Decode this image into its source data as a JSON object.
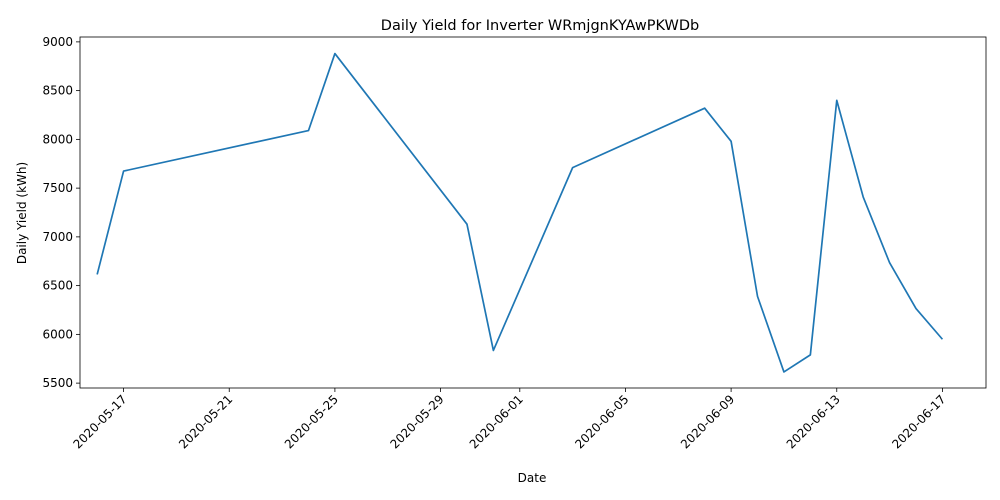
{
  "chart_data": {
    "type": "line",
    "title": "Daily Yield for Inverter WRmjgnKYAwPKWDb",
    "xlabel": "Date",
    "ylabel": "Daily Yield (kWh)",
    "x_tick_labels": [
      "2020-05-17",
      "2020-05-21",
      "2020-05-25",
      "2020-05-29",
      "2020-06-01",
      "2020-06-05",
      "2020-06-09",
      "2020-06-13",
      "2020-06-17"
    ],
    "y_ticks": [
      5500,
      6000,
      6500,
      7000,
      7500,
      8000,
      8500,
      9000
    ],
    "xlim": [
      "2020-05-15",
      "2020-06-17"
    ],
    "ylim": [
      5450,
      9050
    ],
    "grid": false,
    "legend": "none",
    "series": [
      {
        "color": "#1f77b4",
        "points": [
          {
            "x": "2020-05-16",
            "y": 6615
          },
          {
            "x": "2020-05-17",
            "y": 7675
          },
          {
            "x": "2020-05-24",
            "y": 8090
          },
          {
            "x": "2020-05-25",
            "y": 8880
          },
          {
            "x": "2020-05-30",
            "y": 7130
          },
          {
            "x": "2020-05-31",
            "y": 5835
          },
          {
            "x": "2020-06-03",
            "y": 7710
          },
          {
            "x": "2020-06-08",
            "y": 8320
          },
          {
            "x": "2020-06-09",
            "y": 7980
          },
          {
            "x": "2020-06-10",
            "y": 6390
          },
          {
            "x": "2020-06-11",
            "y": 5615
          },
          {
            "x": "2020-06-12",
            "y": 5790
          },
          {
            "x": "2020-06-13",
            "y": 8400
          },
          {
            "x": "2020-06-14",
            "y": 7410
          },
          {
            "x": "2020-06-15",
            "y": 6735
          },
          {
            "x": "2020-06-16",
            "y": 6265
          },
          {
            "x": "2020-06-17",
            "y": 5950
          }
        ]
      }
    ]
  }
}
